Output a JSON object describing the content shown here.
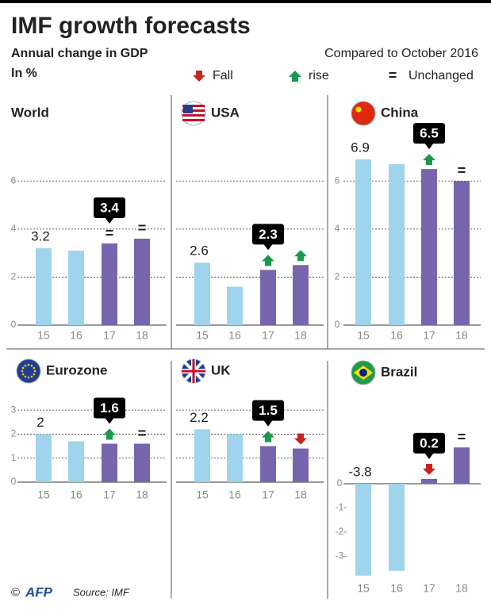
{
  "header": {
    "title": "IMF growth forecasts",
    "subtitle": "Annual change in GDP",
    "unit": "In %",
    "comparison": "Compared to October 2016"
  },
  "legend": [
    {
      "label": "Fall",
      "kind": "fall",
      "color": "#c9251f"
    },
    {
      "label": "rise",
      "kind": "rise",
      "color": "#1a9a4a"
    },
    {
      "label": "Unchanged",
      "kind": "unchanged",
      "symbol": "=",
      "color": "#111111"
    }
  ],
  "chart_data": [
    {
      "type": "bar",
      "title": "World",
      "categories": [
        "15",
        "16",
        "17",
        "18"
      ],
      "values": [
        3.2,
        3.1,
        3.4,
        3.6
      ],
      "value_labels": [
        "3.2",
        null,
        "3.4",
        null
      ],
      "changes": [
        null,
        null,
        "unchanged",
        "unchanged"
      ],
      "colors": [
        "#9fd4ec",
        "#9fd4ec",
        "#7765ae",
        "#7765ae"
      ],
      "ylim": [
        0,
        7
      ],
      "yticks": [
        0,
        2,
        4,
        6
      ],
      "grid": true,
      "tick_labels": true
    },
    {
      "type": "bar",
      "title": "USA",
      "categories": [
        "15",
        "16",
        "17",
        "18"
      ],
      "values": [
        2.6,
        1.6,
        2.3,
        2.5
      ],
      "value_labels": [
        "2.6",
        null,
        "2.3",
        null
      ],
      "changes": [
        null,
        null,
        "rise",
        "rise"
      ],
      "colors": [
        "#9fd4ec",
        "#9fd4ec",
        "#7765ae",
        "#7765ae"
      ],
      "ylim": [
        0,
        7
      ],
      "yticks": [
        0,
        2,
        4,
        6
      ],
      "grid": true,
      "tick_labels": false
    },
    {
      "type": "bar",
      "title": "China",
      "categories": [
        "15",
        "16",
        "17",
        "18"
      ],
      "values": [
        6.9,
        6.7,
        6.5,
        6.0
      ],
      "value_labels": [
        "6.9",
        null,
        "6.5",
        null
      ],
      "changes": [
        null,
        null,
        "rise",
        "unchanged"
      ],
      "colors": [
        "#9fd4ec",
        "#9fd4ec",
        "#7765ae",
        "#7765ae"
      ],
      "ylim": [
        0,
        7
      ],
      "yticks": [
        0,
        2,
        4,
        6
      ],
      "grid": true,
      "tick_labels": true
    },
    {
      "type": "bar",
      "title": "Eurozone",
      "categories": [
        "15",
        "16",
        "17",
        "18"
      ],
      "values": [
        2,
        1.7,
        1.6,
        1.6
      ],
      "value_labels": [
        "2",
        null,
        "1.6",
        null
      ],
      "changes": [
        null,
        null,
        "rise",
        "unchanged"
      ],
      "colors": [
        "#9fd4ec",
        "#9fd4ec",
        "#7765ae",
        "#7765ae"
      ],
      "ylim": [
        0,
        3.5
      ],
      "yticks": [
        0,
        1,
        2,
        3
      ],
      "grid": true,
      "tick_labels": true
    },
    {
      "type": "bar",
      "title": "UK",
      "categories": [
        "15",
        "16",
        "17",
        "18"
      ],
      "values": [
        2.2,
        2.0,
        1.5,
        1.4
      ],
      "value_labels": [
        "2.2",
        null,
        "1.5",
        null
      ],
      "changes": [
        null,
        null,
        "rise",
        "fall"
      ],
      "colors": [
        "#9fd4ec",
        "#9fd4ec",
        "#7765ae",
        "#7765ae"
      ],
      "ylim": [
        0,
        3.5
      ],
      "yticks": [
        0,
        1,
        2,
        3
      ],
      "grid": true,
      "tick_labels": false
    },
    {
      "type": "bar",
      "title": "Brazil",
      "categories": [
        "15",
        "16",
        "17",
        "18"
      ],
      "values": [
        -3.8,
        -3.6,
        0.2,
        1.5
      ],
      "value_labels": [
        "-3.8",
        null,
        "0.2",
        null
      ],
      "changes": [
        null,
        null,
        "fall",
        "unchanged"
      ],
      "colors": [
        "#9fd4ec",
        "#9fd4ec",
        "#7765ae",
        "#7765ae"
      ],
      "ylim": [
        -4,
        2
      ],
      "yticks": [
        -3,
        -2,
        -1,
        0
      ],
      "grid": false,
      "tick_labels": true
    }
  ],
  "footer": {
    "copyright": "©",
    "logo": "AFP",
    "source": "Source: IMF"
  }
}
